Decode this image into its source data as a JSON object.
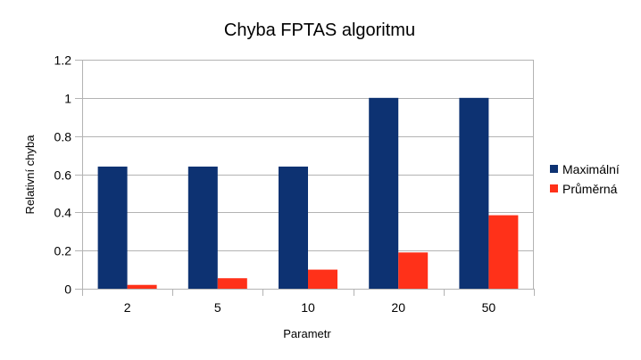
{
  "chart_data": {
    "type": "bar",
    "title": "Chyba FPTAS algoritmu",
    "xlabel": "Parametr",
    "ylabel": "Relativní chyba",
    "categories": [
      "2",
      "5",
      "10",
      "20",
      "50"
    ],
    "series": [
      {
        "name": "Maximální",
        "values": [
          0.64,
          0.64,
          0.64,
          1.0,
          1.0
        ],
        "color": "#0d3272"
      },
      {
        "name": "Průměrná",
        "values": [
          0.02,
          0.055,
          0.1,
          0.19,
          0.385
        ],
        "color": "#ff3119"
      }
    ],
    "ylim": [
      0,
      1.2
    ],
    "yticks": [
      "0",
      "0.2",
      "0.4",
      "0.6",
      "0.8",
      "1",
      "1.2"
    ],
    "grid": true,
    "legend_position": "right",
    "gridline_color": "#b3b3b3"
  }
}
